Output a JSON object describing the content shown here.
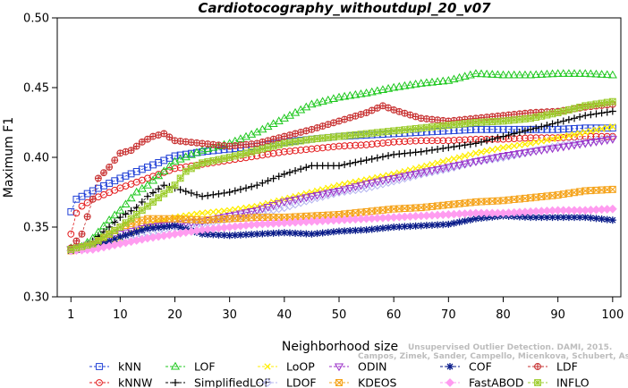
{
  "chart_data": {
    "type": "line",
    "title": "Cardiotocography_withoutdupl_20_v07",
    "xlabel": "Neighborhood size",
    "ylabel": "Maximum F1",
    "xlim": [
      1,
      100
    ],
    "ylim": [
      0.3,
      0.5
    ],
    "xticks": [
      1,
      10,
      20,
      30,
      40,
      50,
      60,
      70,
      80,
      90,
      100
    ],
    "yticks": [
      "0.30",
      "0.35",
      "0.40",
      "0.45",
      "0.50"
    ],
    "grid": false,
    "legend_position": "bottom",
    "watermark": "Campos, Zimek, Sander, Campello, Micenkova, Schubert, Assent, Houle",
    "watermark_line1": "Unsupervised Outlier Detection. DAMI, 2015.",
    "series": [
      {
        "name": "kNN",
        "color": "#1f3fd6",
        "marker": "square",
        "points": [
          [
            1,
            0.361
          ],
          [
            2,
            0.37
          ],
          [
            3,
            0.372
          ],
          [
            5,
            0.376
          ],
          [
            10,
            0.385
          ],
          [
            15,
            0.393
          ],
          [
            20,
            0.401
          ],
          [
            25,
            0.404
          ],
          [
            30,
            0.406
          ],
          [
            35,
            0.408
          ],
          [
            40,
            0.411
          ],
          [
            45,
            0.413
          ],
          [
            50,
            0.415
          ],
          [
            55,
            0.416
          ],
          [
            60,
            0.417
          ],
          [
            65,
            0.418
          ],
          [
            70,
            0.419
          ],
          [
            75,
            0.42
          ],
          [
            80,
            0.42
          ],
          [
            85,
            0.42
          ],
          [
            90,
            0.42
          ],
          [
            95,
            0.421
          ],
          [
            100,
            0.421
          ]
        ]
      },
      {
        "name": "kNNW",
        "color": "#e31a1c",
        "marker": "circle",
        "points": [
          [
            1,
            0.345
          ],
          [
            2,
            0.36
          ],
          [
            3,
            0.365
          ],
          [
            5,
            0.37
          ],
          [
            10,
            0.378
          ],
          [
            15,
            0.385
          ],
          [
            20,
            0.392
          ],
          [
            25,
            0.395
          ],
          [
            30,
            0.398
          ],
          [
            35,
            0.401
          ],
          [
            40,
            0.404
          ],
          [
            45,
            0.406
          ],
          [
            50,
            0.408
          ],
          [
            55,
            0.409
          ],
          [
            60,
            0.411
          ],
          [
            65,
            0.412
          ],
          [
            70,
            0.412
          ],
          [
            75,
            0.413
          ],
          [
            80,
            0.413
          ],
          [
            85,
            0.414
          ],
          [
            90,
            0.414
          ],
          [
            95,
            0.415
          ],
          [
            100,
            0.415
          ]
        ]
      },
      {
        "name": "LOF",
        "color": "#1ec81e",
        "marker": "triangle",
        "points": [
          [
            1,
            0.335
          ],
          [
            3,
            0.336
          ],
          [
            5,
            0.342
          ],
          [
            8,
            0.355
          ],
          [
            10,
            0.362
          ],
          [
            13,
            0.375
          ],
          [
            15,
            0.38
          ],
          [
            18,
            0.39
          ],
          [
            20,
            0.397
          ],
          [
            25,
            0.405
          ],
          [
            30,
            0.41
          ],
          [
            35,
            0.418
          ],
          [
            40,
            0.428
          ],
          [
            45,
            0.438
          ],
          [
            50,
            0.443
          ],
          [
            55,
            0.446
          ],
          [
            60,
            0.45
          ],
          [
            65,
            0.453
          ],
          [
            70,
            0.455
          ],
          [
            75,
            0.46
          ],
          [
            80,
            0.459
          ],
          [
            85,
            0.459
          ],
          [
            90,
            0.46
          ],
          [
            95,
            0.46
          ],
          [
            100,
            0.459
          ]
        ]
      },
      {
        "name": "SimplifiedLOF",
        "color": "#000000",
        "marker": "plus",
        "points": [
          [
            1,
            0.334
          ],
          [
            3,
            0.335
          ],
          [
            5,
            0.34
          ],
          [
            8,
            0.35
          ],
          [
            10,
            0.357
          ],
          [
            13,
            0.364
          ],
          [
            15,
            0.372
          ],
          [
            18,
            0.38
          ],
          [
            20,
            0.378
          ],
          [
            25,
            0.372
          ],
          [
            30,
            0.375
          ],
          [
            35,
            0.38
          ],
          [
            40,
            0.388
          ],
          [
            45,
            0.394
          ],
          [
            50,
            0.394
          ],
          [
            55,
            0.398
          ],
          [
            60,
            0.402
          ],
          [
            65,
            0.404
          ],
          [
            70,
            0.407
          ],
          [
            75,
            0.41
          ],
          [
            80,
            0.415
          ],
          [
            85,
            0.42
          ],
          [
            90,
            0.425
          ],
          [
            95,
            0.43
          ],
          [
            100,
            0.433
          ]
        ]
      },
      {
        "name": "LoOP",
        "color": "#ffee00",
        "marker": "x",
        "points": [
          [
            1,
            0.333
          ],
          [
            5,
            0.336
          ],
          [
            10,
            0.342
          ],
          [
            15,
            0.352
          ],
          [
            20,
            0.357
          ],
          [
            25,
            0.36
          ],
          [
            30,
            0.362
          ],
          [
            35,
            0.365
          ],
          [
            40,
            0.37
          ],
          [
            45,
            0.375
          ],
          [
            50,
            0.38
          ],
          [
            55,
            0.384
          ],
          [
            60,
            0.388
          ],
          [
            65,
            0.393
          ],
          [
            70,
            0.398
          ],
          [
            75,
            0.403
          ],
          [
            80,
            0.407
          ],
          [
            85,
            0.41
          ],
          [
            90,
            0.414
          ],
          [
            95,
            0.418
          ],
          [
            100,
            0.422
          ]
        ]
      },
      {
        "name": "LDOF",
        "color": "#b4b4f0",
        "marker": "diamond",
        "points": [
          [
            1,
            0.333
          ],
          [
            5,
            0.335
          ],
          [
            10,
            0.34
          ],
          [
            15,
            0.345
          ],
          [
            20,
            0.35
          ],
          [
            25,
            0.352
          ],
          [
            30,
            0.356
          ],
          [
            35,
            0.36
          ],
          [
            40,
            0.364
          ],
          [
            45,
            0.37
          ],
          [
            50,
            0.375
          ],
          [
            55,
            0.378
          ],
          [
            60,
            0.383
          ],
          [
            65,
            0.388
          ],
          [
            70,
            0.392
          ],
          [
            75,
            0.397
          ],
          [
            80,
            0.4
          ],
          [
            85,
            0.404
          ],
          [
            90,
            0.408
          ],
          [
            95,
            0.411
          ],
          [
            100,
            0.414
          ]
        ]
      },
      {
        "name": "ODIN",
        "color": "#9b30c8",
        "marker": "triangle-down",
        "points": [
          [
            1,
            0.334
          ],
          [
            5,
            0.338
          ],
          [
            10,
            0.345
          ],
          [
            15,
            0.35
          ],
          [
            20,
            0.352
          ],
          [
            25,
            0.354
          ],
          [
            30,
            0.358
          ],
          [
            35,
            0.362
          ],
          [
            40,
            0.368
          ],
          [
            45,
            0.372
          ],
          [
            50,
            0.376
          ],
          [
            55,
            0.381
          ],
          [
            60,
            0.385
          ],
          [
            65,
            0.389
          ],
          [
            70,
            0.393
          ],
          [
            75,
            0.397
          ],
          [
            80,
            0.401
          ],
          [
            85,
            0.404
          ],
          [
            90,
            0.407
          ],
          [
            95,
            0.41
          ],
          [
            100,
            0.413
          ]
        ]
      },
      {
        "name": "KDEOS",
        "color": "#f5a31a",
        "marker": "square-x",
        "points": [
          [
            1,
            0.333
          ],
          [
            5,
            0.337
          ],
          [
            10,
            0.35
          ],
          [
            15,
            0.356
          ],
          [
            20,
            0.356
          ],
          [
            25,
            0.355
          ],
          [
            30,
            0.356
          ],
          [
            35,
            0.357
          ],
          [
            40,
            0.357
          ],
          [
            45,
            0.358
          ],
          [
            50,
            0.359
          ],
          [
            55,
            0.361
          ],
          [
            60,
            0.363
          ],
          [
            65,
            0.364
          ],
          [
            70,
            0.366
          ],
          [
            75,
            0.368
          ],
          [
            80,
            0.369
          ],
          [
            85,
            0.371
          ],
          [
            90,
            0.373
          ],
          [
            95,
            0.376
          ],
          [
            100,
            0.377
          ]
        ]
      },
      {
        "name": "COF",
        "color": "#0b1d8a",
        "marker": "asterisk",
        "points": [
          [
            1,
            0.333
          ],
          [
            5,
            0.335
          ],
          [
            10,
            0.343
          ],
          [
            15,
            0.349
          ],
          [
            20,
            0.351
          ],
          [
            25,
            0.345
          ],
          [
            30,
            0.344
          ],
          [
            35,
            0.345
          ],
          [
            40,
            0.346
          ],
          [
            45,
            0.345
          ],
          [
            50,
            0.347
          ],
          [
            55,
            0.348
          ],
          [
            60,
            0.35
          ],
          [
            65,
            0.351
          ],
          [
            70,
            0.352
          ],
          [
            75,
            0.356
          ],
          [
            80,
            0.358
          ],
          [
            85,
            0.357
          ],
          [
            90,
            0.357
          ],
          [
            95,
            0.357
          ],
          [
            100,
            0.355
          ]
        ]
      },
      {
        "name": "FastABOD",
        "color": "#ff9cf0",
        "marker": "diamond-filled",
        "points": [
          [
            1,
            0.333
          ],
          [
            5,
            0.334
          ],
          [
            10,
            0.338
          ],
          [
            15,
            0.342
          ],
          [
            20,
            0.345
          ],
          [
            25,
            0.348
          ],
          [
            30,
            0.35
          ],
          [
            35,
            0.352
          ],
          [
            40,
            0.353
          ],
          [
            45,
            0.354
          ],
          [
            50,
            0.355
          ],
          [
            55,
            0.356
          ],
          [
            60,
            0.357
          ],
          [
            65,
            0.358
          ],
          [
            70,
            0.359
          ],
          [
            75,
            0.36
          ],
          [
            80,
            0.36
          ],
          [
            85,
            0.361
          ],
          [
            90,
            0.362
          ],
          [
            95,
            0.362
          ],
          [
            100,
            0.363
          ]
        ]
      },
      {
        "name": "LDF",
        "color": "#c83232",
        "marker": "circle-plus",
        "points": [
          [
            1,
            0.335
          ],
          [
            3,
            0.345
          ],
          [
            5,
            0.37
          ],
          [
            6,
            0.385
          ],
          [
            8,
            0.393
          ],
          [
            10,
            0.403
          ],
          [
            12,
            0.405
          ],
          [
            14,
            0.411
          ],
          [
            16,
            0.415
          ],
          [
            18,
            0.417
          ],
          [
            20,
            0.412
          ],
          [
            25,
            0.41
          ],
          [
            30,
            0.408
          ],
          [
            35,
            0.41
          ],
          [
            40,
            0.415
          ],
          [
            45,
            0.42
          ],
          [
            50,
            0.426
          ],
          [
            55,
            0.432
          ],
          [
            58,
            0.437
          ],
          [
            60,
            0.434
          ],
          [
            65,
            0.428
          ],
          [
            70,
            0.426
          ],
          [
            75,
            0.428
          ],
          [
            80,
            0.43
          ],
          [
            85,
            0.432
          ],
          [
            90,
            0.433
          ],
          [
            95,
            0.436
          ],
          [
            100,
            0.438
          ]
        ]
      },
      {
        "name": "INFLO",
        "color": "#9ccc2c",
        "marker": "square-star",
        "points": [
          [
            1,
            0.334
          ],
          [
            5,
            0.338
          ],
          [
            10,
            0.35
          ],
          [
            15,
            0.365
          ],
          [
            20,
            0.38
          ],
          [
            22,
            0.39
          ],
          [
            25,
            0.396
          ],
          [
            30,
            0.4
          ],
          [
            35,
            0.405
          ],
          [
            40,
            0.41
          ],
          [
            45,
            0.413
          ],
          [
            50,
            0.415
          ],
          [
            55,
            0.417
          ],
          [
            60,
            0.419
          ],
          [
            65,
            0.421
          ],
          [
            70,
            0.423
          ],
          [
            75,
            0.425
          ],
          [
            80,
            0.426
          ],
          [
            85,
            0.428
          ],
          [
            90,
            0.432
          ],
          [
            95,
            0.437
          ],
          [
            100,
            0.44
          ]
        ]
      }
    ]
  }
}
